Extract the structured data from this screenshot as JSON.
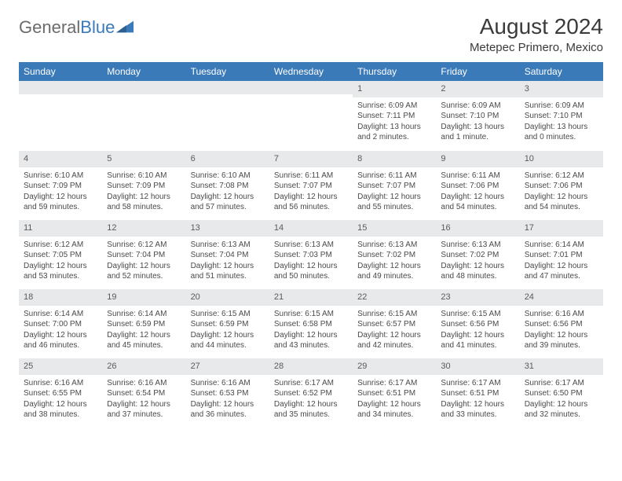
{
  "brand": {
    "part1": "General",
    "part2": "Blue"
  },
  "title": "August 2024",
  "location": "Metepec Primero, Mexico",
  "colors": {
    "header_bg": "#3a7ab8",
    "header_fg": "#ffffff",
    "daynum_bg": "#e7e9eb",
    "text": "#4a4a4a",
    "page_bg": "#ffffff"
  },
  "typography": {
    "title_fontsize": 28,
    "location_fontsize": 15,
    "dayheader_fontsize": 12,
    "cell_fontsize": 10
  },
  "day_headers": [
    "Sunday",
    "Monday",
    "Tuesday",
    "Wednesday",
    "Thursday",
    "Friday",
    "Saturday"
  ],
  "weeks": [
    [
      {
        "num": "",
        "sunrise": "",
        "sunset": "",
        "daylight": ""
      },
      {
        "num": "",
        "sunrise": "",
        "sunset": "",
        "daylight": ""
      },
      {
        "num": "",
        "sunrise": "",
        "sunset": "",
        "daylight": ""
      },
      {
        "num": "",
        "sunrise": "",
        "sunset": "",
        "daylight": ""
      },
      {
        "num": "1",
        "sunrise": "Sunrise: 6:09 AM",
        "sunset": "Sunset: 7:11 PM",
        "daylight": "Daylight: 13 hours and 2 minutes."
      },
      {
        "num": "2",
        "sunrise": "Sunrise: 6:09 AM",
        "sunset": "Sunset: 7:10 PM",
        "daylight": "Daylight: 13 hours and 1 minute."
      },
      {
        "num": "3",
        "sunrise": "Sunrise: 6:09 AM",
        "sunset": "Sunset: 7:10 PM",
        "daylight": "Daylight: 13 hours and 0 minutes."
      }
    ],
    [
      {
        "num": "4",
        "sunrise": "Sunrise: 6:10 AM",
        "sunset": "Sunset: 7:09 PM",
        "daylight": "Daylight: 12 hours and 59 minutes."
      },
      {
        "num": "5",
        "sunrise": "Sunrise: 6:10 AM",
        "sunset": "Sunset: 7:09 PM",
        "daylight": "Daylight: 12 hours and 58 minutes."
      },
      {
        "num": "6",
        "sunrise": "Sunrise: 6:10 AM",
        "sunset": "Sunset: 7:08 PM",
        "daylight": "Daylight: 12 hours and 57 minutes."
      },
      {
        "num": "7",
        "sunrise": "Sunrise: 6:11 AM",
        "sunset": "Sunset: 7:07 PM",
        "daylight": "Daylight: 12 hours and 56 minutes."
      },
      {
        "num": "8",
        "sunrise": "Sunrise: 6:11 AM",
        "sunset": "Sunset: 7:07 PM",
        "daylight": "Daylight: 12 hours and 55 minutes."
      },
      {
        "num": "9",
        "sunrise": "Sunrise: 6:11 AM",
        "sunset": "Sunset: 7:06 PM",
        "daylight": "Daylight: 12 hours and 54 minutes."
      },
      {
        "num": "10",
        "sunrise": "Sunrise: 6:12 AM",
        "sunset": "Sunset: 7:06 PM",
        "daylight": "Daylight: 12 hours and 54 minutes."
      }
    ],
    [
      {
        "num": "11",
        "sunrise": "Sunrise: 6:12 AM",
        "sunset": "Sunset: 7:05 PM",
        "daylight": "Daylight: 12 hours and 53 minutes."
      },
      {
        "num": "12",
        "sunrise": "Sunrise: 6:12 AM",
        "sunset": "Sunset: 7:04 PM",
        "daylight": "Daylight: 12 hours and 52 minutes."
      },
      {
        "num": "13",
        "sunrise": "Sunrise: 6:13 AM",
        "sunset": "Sunset: 7:04 PM",
        "daylight": "Daylight: 12 hours and 51 minutes."
      },
      {
        "num": "14",
        "sunrise": "Sunrise: 6:13 AM",
        "sunset": "Sunset: 7:03 PM",
        "daylight": "Daylight: 12 hours and 50 minutes."
      },
      {
        "num": "15",
        "sunrise": "Sunrise: 6:13 AM",
        "sunset": "Sunset: 7:02 PM",
        "daylight": "Daylight: 12 hours and 49 minutes."
      },
      {
        "num": "16",
        "sunrise": "Sunrise: 6:13 AM",
        "sunset": "Sunset: 7:02 PM",
        "daylight": "Daylight: 12 hours and 48 minutes."
      },
      {
        "num": "17",
        "sunrise": "Sunrise: 6:14 AM",
        "sunset": "Sunset: 7:01 PM",
        "daylight": "Daylight: 12 hours and 47 minutes."
      }
    ],
    [
      {
        "num": "18",
        "sunrise": "Sunrise: 6:14 AM",
        "sunset": "Sunset: 7:00 PM",
        "daylight": "Daylight: 12 hours and 46 minutes."
      },
      {
        "num": "19",
        "sunrise": "Sunrise: 6:14 AM",
        "sunset": "Sunset: 6:59 PM",
        "daylight": "Daylight: 12 hours and 45 minutes."
      },
      {
        "num": "20",
        "sunrise": "Sunrise: 6:15 AM",
        "sunset": "Sunset: 6:59 PM",
        "daylight": "Daylight: 12 hours and 44 minutes."
      },
      {
        "num": "21",
        "sunrise": "Sunrise: 6:15 AM",
        "sunset": "Sunset: 6:58 PM",
        "daylight": "Daylight: 12 hours and 43 minutes."
      },
      {
        "num": "22",
        "sunrise": "Sunrise: 6:15 AM",
        "sunset": "Sunset: 6:57 PM",
        "daylight": "Daylight: 12 hours and 42 minutes."
      },
      {
        "num": "23",
        "sunrise": "Sunrise: 6:15 AM",
        "sunset": "Sunset: 6:56 PM",
        "daylight": "Daylight: 12 hours and 41 minutes."
      },
      {
        "num": "24",
        "sunrise": "Sunrise: 6:16 AM",
        "sunset": "Sunset: 6:56 PM",
        "daylight": "Daylight: 12 hours and 39 minutes."
      }
    ],
    [
      {
        "num": "25",
        "sunrise": "Sunrise: 6:16 AM",
        "sunset": "Sunset: 6:55 PM",
        "daylight": "Daylight: 12 hours and 38 minutes."
      },
      {
        "num": "26",
        "sunrise": "Sunrise: 6:16 AM",
        "sunset": "Sunset: 6:54 PM",
        "daylight": "Daylight: 12 hours and 37 minutes."
      },
      {
        "num": "27",
        "sunrise": "Sunrise: 6:16 AM",
        "sunset": "Sunset: 6:53 PM",
        "daylight": "Daylight: 12 hours and 36 minutes."
      },
      {
        "num": "28",
        "sunrise": "Sunrise: 6:17 AM",
        "sunset": "Sunset: 6:52 PM",
        "daylight": "Daylight: 12 hours and 35 minutes."
      },
      {
        "num": "29",
        "sunrise": "Sunrise: 6:17 AM",
        "sunset": "Sunset: 6:51 PM",
        "daylight": "Daylight: 12 hours and 34 minutes."
      },
      {
        "num": "30",
        "sunrise": "Sunrise: 6:17 AM",
        "sunset": "Sunset: 6:51 PM",
        "daylight": "Daylight: 12 hours and 33 minutes."
      },
      {
        "num": "31",
        "sunrise": "Sunrise: 6:17 AM",
        "sunset": "Sunset: 6:50 PM",
        "daylight": "Daylight: 12 hours and 32 minutes."
      }
    ]
  ]
}
